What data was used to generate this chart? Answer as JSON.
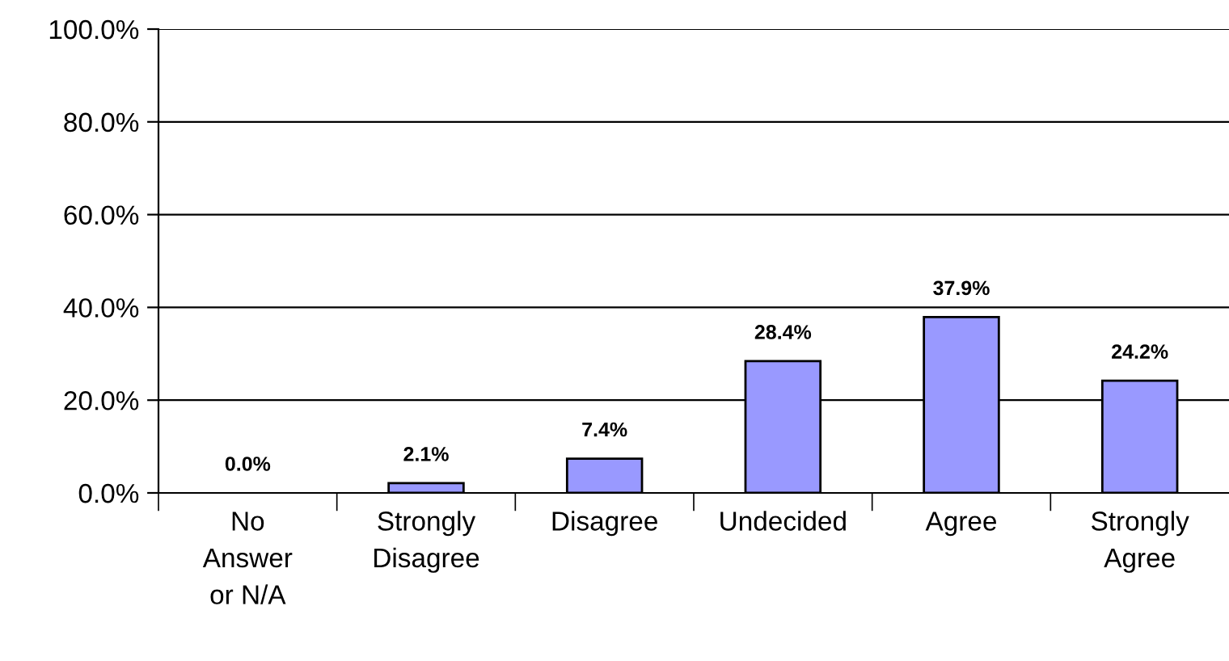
{
  "chart_data": {
    "type": "bar",
    "categories": [
      "No\nAnswer\nor N/A",
      "Strongly\nDisagree",
      "Disagree",
      "Undecided",
      "Agree",
      "Strongly\nAgree"
    ],
    "values": [
      0.0,
      2.1,
      7.4,
      28.4,
      37.9,
      24.2
    ],
    "value_labels": [
      "0.0%",
      "2.1%",
      "7.4%",
      "28.4%",
      "37.9%",
      "24.2%"
    ],
    "color": "#9999ff",
    "ylim": [
      0,
      100
    ],
    "yticks": [
      {
        "value": 0,
        "label": "0.0%"
      },
      {
        "value": 20,
        "label": "20.0%"
      },
      {
        "value": 40,
        "label": "40.0%"
      },
      {
        "value": 60,
        "label": "60.0%"
      },
      {
        "value": 80,
        "label": "80.0%"
      },
      {
        "value": 100,
        "label": "100.0%"
      }
    ],
    "grid": "y",
    "legend": false
  }
}
